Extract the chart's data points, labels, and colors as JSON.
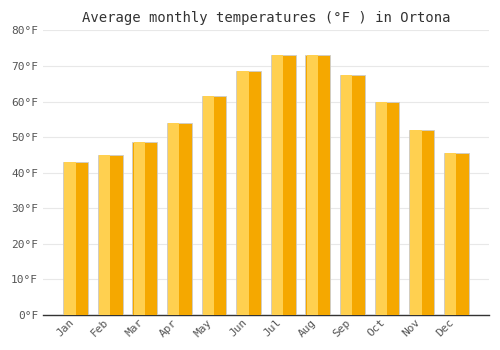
{
  "title": "Average monthly temperatures (°F ) in Ortona",
  "months": [
    "Jan",
    "Feb",
    "Mar",
    "Apr",
    "May",
    "Jun",
    "Jul",
    "Aug",
    "Sep",
    "Oct",
    "Nov",
    "Dec"
  ],
  "values": [
    43,
    45,
    48.5,
    54,
    61.5,
    68.5,
    73,
    73,
    67.5,
    60,
    52,
    45.5
  ],
  "bar_color_left": "#F5A800",
  "bar_color_center": "#FFD050",
  "bar_color_right": "#F0A000",
  "bar_edge_color": "#CCCCCC",
  "background_color": "#FFFFFF",
  "plot_bg_color": "#FFFFFF",
  "ylim": [
    0,
    80
  ],
  "yticks": [
    0,
    10,
    20,
    30,
    40,
    50,
    60,
    70,
    80
  ],
  "ytick_labels": [
    "0°F",
    "10°F",
    "20°F",
    "30°F",
    "40°F",
    "50°F",
    "60°F",
    "70°F",
    "80°F"
  ],
  "grid_color": "#E8E8E8",
  "title_fontsize": 10,
  "tick_fontsize": 8,
  "font_family": "monospace"
}
